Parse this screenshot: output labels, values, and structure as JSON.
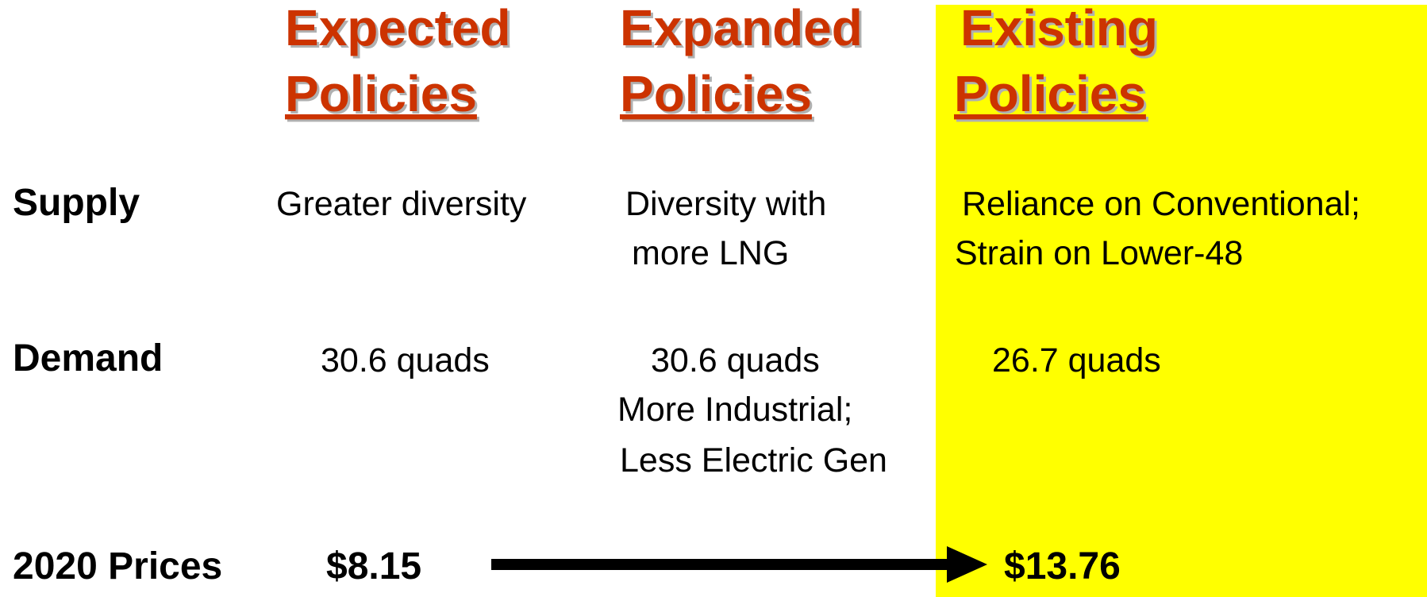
{
  "columns": [
    {
      "line1": "Expected",
      "line2": "Policies"
    },
    {
      "line1": "Expanded",
      "line2": "Policies"
    },
    {
      "line1": "Existing",
      "line2": "Policies"
    }
  ],
  "rows": [
    {
      "label": "Supply",
      "cells": [
        [
          "Greater diversity"
        ],
        [
          "Diversity with",
          "more LNG"
        ],
        [
          "Reliance on Conventional;",
          "Strain on Lower-48"
        ]
      ]
    },
    {
      "label": "Demand",
      "cells": [
        [
          "30.6 quads"
        ],
        [
          "30.6 quads",
          "More Industrial;",
          "Less Electric Gen"
        ],
        [
          "26.7 quads"
        ]
      ]
    },
    {
      "label": "2020 Prices",
      "cells": [
        [
          "$8.15"
        ],
        [],
        [
          "$13.76"
        ]
      ]
    }
  ]
}
